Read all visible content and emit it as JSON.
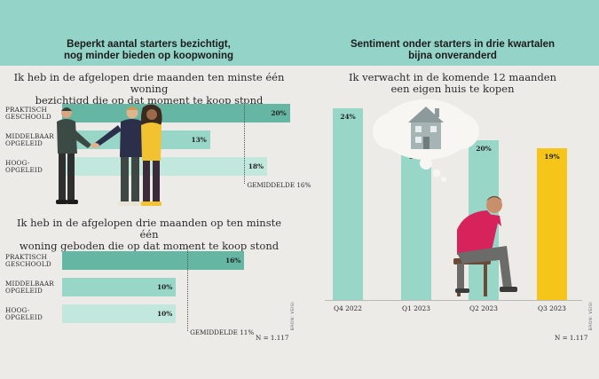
{
  "colors": {
    "header_band": "#94d4c8",
    "background": "#ecebe8",
    "bar_dark": "#65b7a3",
    "bar_mid": "#98d6c7",
    "bar_light": "#c2e8dd",
    "bar_highlight": "#f6c519"
  },
  "left": {
    "title_line1": "Beperkt aantal starters bezichtigt,",
    "title_line2": "nog minder bieden op koopwoning",
    "source": "BRON: VEISI"
  },
  "right": {
    "title_line1": "Sentiment onder starters in drie kwartalen",
    "title_line2": "bijna onveranderd",
    "source": "BRON: VEISI"
  },
  "chart_data": [
    {
      "type": "bar",
      "orientation": "horizontal",
      "subtitle_line1": "Ik heb in de afgelopen drie maanden ten minste één woning",
      "subtitle_line2": "bezichtigd die op dat moment te koop stond",
      "categories": [
        {
          "line1": "PRAKTISCH",
          "line2": "GESCHOOLD"
        },
        {
          "line1": "MIDDELBAAR",
          "line2": "OPGELEID"
        },
        {
          "line1": "HOOG-",
          "line2": "OPGELEID"
        }
      ],
      "values": [
        20,
        13,
        18
      ],
      "value_labels": [
        "20%",
        "13%",
        "18%"
      ],
      "average": 16,
      "average_label": "GEMIDDELDE 16%",
      "xlim": [
        0,
        24
      ]
    },
    {
      "type": "bar",
      "orientation": "horizontal",
      "subtitle_line1": "Ik heb in de afgelopen drie maanden op ten minste één",
      "subtitle_line2": "woning geboden die op dat moment te koop stond",
      "categories": [
        {
          "line1": "PRAKTISCH",
          "line2": "GESCHOOLD"
        },
        {
          "line1": "MIDDELBAAR",
          "line2": "OPGELEID"
        },
        {
          "line1": "HOOG-",
          "line2": "OPGELEID"
        }
      ],
      "values": [
        16,
        10,
        10
      ],
      "value_labels": [
        "16%",
        "10%",
        "10%"
      ],
      "average": 11,
      "average_label": "GEMIDDELDE 11%",
      "n_label": "N = 1.117",
      "xlim": [
        0,
        24
      ]
    },
    {
      "type": "bar",
      "orientation": "vertical",
      "subtitle_line1": "Ik verwacht in de komende 12 maanden",
      "subtitle_line2": "een eigen huis te kopen",
      "categories": [
        "Q4 2022",
        "Q1 2023",
        "Q2 2023",
        "Q3 2023"
      ],
      "values": [
        24,
        19,
        20,
        19
      ],
      "value_labels": [
        "24%",
        "19%",
        "20%",
        "19%"
      ],
      "n_label": "N = 1.117",
      "ylim": [
        0,
        24
      ]
    }
  ]
}
